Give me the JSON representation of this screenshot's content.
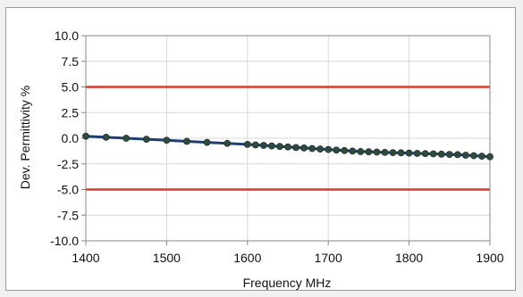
{
  "chart_data": {
    "type": "line",
    "title": "",
    "xlabel": "Frequency MHz",
    "ylabel": "Dev. Permittivity %",
    "xlim": [
      1400,
      1900
    ],
    "ylim": [
      -10,
      10
    ],
    "x_ticks": [
      1400,
      1500,
      1600,
      1700,
      1800,
      1900
    ],
    "y_ticks": [
      10,
      7.5,
      5,
      2.5,
      0,
      -2.5,
      -5,
      -7.5,
      -10
    ],
    "x_tick_labels": [
      "1400",
      "1500",
      "1600",
      "1700",
      "1800",
      "1900"
    ],
    "y_tick_labels": [
      "10.0",
      "7.5",
      "5.0",
      "2.5",
      "0.0",
      "-2.5",
      "-5.0",
      "-7.5",
      "-10.0"
    ],
    "grid": true,
    "legend": "none",
    "colors": {
      "series": "#1f3f73",
      "marker": "#2f4a3f",
      "limit": "#d63a2a",
      "grid": "#d8d8d8",
      "axis": "#888888"
    },
    "series": [
      {
        "x": [
          1400,
          1425,
          1450,
          1475,
          1500,
          1525,
          1550,
          1575,
          1600,
          1610,
          1620,
          1630,
          1640,
          1650,
          1660,
          1670,
          1680,
          1690,
          1700,
          1710,
          1720,
          1730,
          1740,
          1750,
          1760,
          1770,
          1780,
          1790,
          1800,
          1810,
          1820,
          1830,
          1840,
          1850,
          1860,
          1870,
          1880,
          1890,
          1900
        ],
        "values": [
          0.2,
          0.1,
          0.0,
          -0.1,
          -0.2,
          -0.3,
          -0.4,
          -0.5,
          -0.6,
          -0.65,
          -0.7,
          -0.75,
          -0.8,
          -0.85,
          -0.9,
          -0.95,
          -1.0,
          -1.05,
          -1.1,
          -1.15,
          -1.2,
          -1.25,
          -1.3,
          -1.32,
          -1.35,
          -1.38,
          -1.4,
          -1.42,
          -1.45,
          -1.48,
          -1.5,
          -1.52,
          -1.55,
          -1.58,
          -1.6,
          -1.65,
          -1.7,
          -1.75,
          -1.8
        ]
      }
    ],
    "reference_lines": [
      5.0,
      -5.0
    ]
  }
}
